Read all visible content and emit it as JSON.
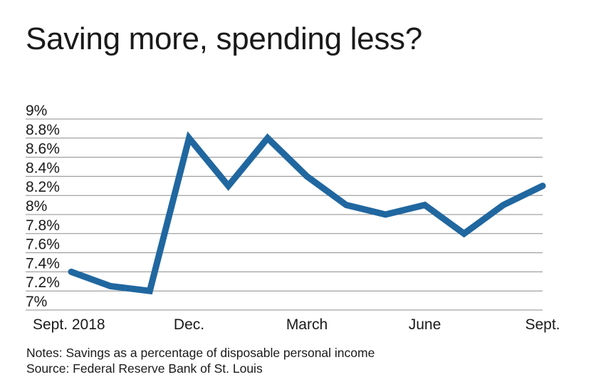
{
  "title": "Saving more, spending less?",
  "notes": "Notes: Savings as a percentage of disposable personal income",
  "source": "Source: Federal Reserve Bank of St. Louis",
  "chart_data": {
    "type": "line",
    "title": "Saving more, spending less?",
    "xlabel": "",
    "ylabel": "",
    "x": [
      "Sept. 2018",
      "Oct. 2018",
      "Nov. 2018",
      "Dec. 2018",
      "Jan. 2019",
      "Feb. 2019",
      "Mar. 2019",
      "Apr. 2019",
      "May 2019",
      "Jun. 2019",
      "Jul. 2019",
      "Aug. 2019",
      "Sept. 2019"
    ],
    "x_tick_labels": [
      {
        "index": 0,
        "label": "Sept. 2018"
      },
      {
        "index": 3,
        "label": "Dec."
      },
      {
        "index": 6,
        "label": "March"
      },
      {
        "index": 9,
        "label": "June"
      },
      {
        "index": 12,
        "label": "Sept."
      }
    ],
    "series": [
      {
        "values": [
          7.4,
          7.25,
          7.2,
          8.8,
          8.3,
          8.8,
          8.4,
          8.1,
          8.0,
          8.1,
          7.8,
          8.1,
          8.3
        ]
      }
    ],
    "ylim": [
      7,
      9
    ],
    "y_ticks": [
      {
        "value": 9,
        "label": "9%"
      },
      {
        "value": 8.8,
        "label": "8.8%"
      },
      {
        "value": 8.6,
        "label": "8.6%"
      },
      {
        "value": 8.4,
        "label": "8.4%"
      },
      {
        "value": 8.2,
        "label": "8.2%"
      },
      {
        "value": 8,
        "label": "8%"
      },
      {
        "value": 7.8,
        "label": "7.8%"
      },
      {
        "value": 7.6,
        "label": "7.6%"
      },
      {
        "value": 7.4,
        "label": "7.4%"
      },
      {
        "value": 7.2,
        "label": "7.2%"
      },
      {
        "value": 7,
        "label": "7%"
      }
    ],
    "grid": true,
    "line_color": "#2067a0",
    "grid_color": "#8c8c8c"
  }
}
